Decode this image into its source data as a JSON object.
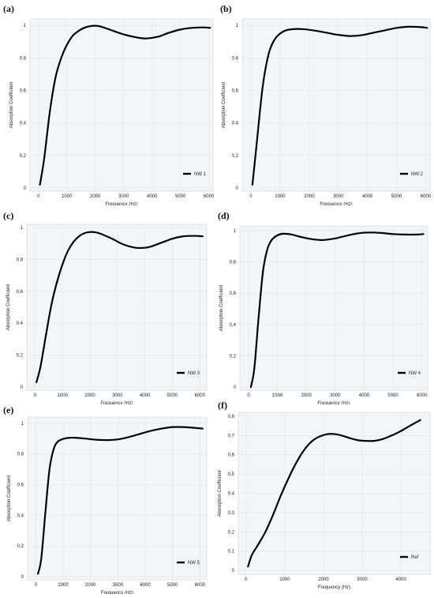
{
  "panels": [
    {
      "label": "(a)",
      "chart_data": {
        "type": "line",
        "xlabel": "Frequency (Hz)",
        "ylabel": "Absorption Coefficient",
        "xlim": [
          -300,
          6150
        ],
        "ylim": [
          -0.02,
          1.04
        ],
        "xticks": [
          0,
          1000,
          2000,
          3000,
          4000,
          5000,
          6000
        ],
        "yticks": [
          0,
          0.2,
          0.4,
          0.6,
          0.8,
          1
        ],
        "ytick_labels": [
          "0",
          "0.2",
          "0.4",
          "0.6",
          "0.8",
          "1"
        ],
        "grid": true,
        "legend": "bottom-right",
        "series": [
          {
            "name": "NW 1",
            "x": [
              50,
              200,
              400,
              600,
              800,
              1000,
              1200,
              1400,
              1600,
              1800,
              2000,
              2200,
              2500,
              3000,
              3500,
              3800,
              4200,
              4600,
              5000,
              5400,
              5800,
              6050
            ],
            "y": [
              0.02,
              0.18,
              0.47,
              0.68,
              0.8,
              0.88,
              0.935,
              0.965,
              0.985,
              0.995,
              0.998,
              0.993,
              0.975,
              0.945,
              0.925,
              0.92,
              0.93,
              0.955,
              0.975,
              0.985,
              0.988,
              0.985
            ]
          }
        ]
      }
    },
    {
      "label": "(b)",
      "chart_data": {
        "type": "line",
        "xlabel": "Frequency (Hz)",
        "ylabel": "Absorption Coefficient",
        "xlim": [
          -300,
          6150
        ],
        "ylim": [
          -0.02,
          1.04
        ],
        "xticks": [
          0,
          1000,
          2000,
          3000,
          4000,
          5000,
          6000
        ],
        "yticks": [
          0,
          0.2,
          0.4,
          0.6,
          0.8,
          1
        ],
        "ytick_labels": [
          "0",
          "0.2",
          "0.4",
          "0.6",
          "0.8",
          "1"
        ],
        "grid": true,
        "legend": "bottom-right",
        "series": [
          {
            "name": "NW 2",
            "x": [
              50,
              200,
              400,
              600,
              800,
              1000,
              1200,
              1500,
              1800,
              2200,
              2600,
              3000,
              3400,
              3800,
              4200,
              4600,
              5000,
              5400,
              5800,
              6050
            ],
            "y": [
              0.02,
              0.28,
              0.62,
              0.82,
              0.91,
              0.95,
              0.97,
              0.978,
              0.977,
              0.968,
              0.955,
              0.942,
              0.935,
              0.94,
              0.955,
              0.97,
              0.985,
              0.992,
              0.99,
              0.985
            ]
          }
        ]
      }
    },
    {
      "label": "(c)",
      "chart_data": {
        "type": "line",
        "xlabel": "Frequency (Hz)",
        "ylabel": "Absorption Coefficient",
        "xlim": [
          -300,
          6250
        ],
        "ylim": [
          -0.02,
          1.02
        ],
        "xticks": [
          0,
          1000,
          2000,
          3000,
          4000,
          5000,
          6000
        ],
        "yticks": [
          0,
          0.2,
          0.4,
          0.6,
          0.8,
          1
        ],
        "ytick_labels": [
          "0",
          "0.2",
          "0.4",
          "0.6",
          "0.8",
          "1"
        ],
        "grid": true,
        "legend": "bottom-right",
        "series": [
          {
            "name": "NW 3",
            "x": [
              50,
              200,
              400,
              600,
              800,
              1000,
              1200,
              1400,
              1600,
              1800,
              2000,
              2200,
              2400,
              2800,
              3200,
              3600,
              3900,
              4200,
              4600,
              5000,
              5400,
              5800,
              6100
            ],
            "y": [
              0.03,
              0.13,
              0.33,
              0.52,
              0.66,
              0.77,
              0.855,
              0.91,
              0.945,
              0.965,
              0.972,
              0.97,
              0.96,
              0.93,
              0.895,
              0.875,
              0.872,
              0.88,
              0.905,
              0.93,
              0.945,
              0.948,
              0.945
            ]
          }
        ]
      }
    },
    {
      "label": "(d)",
      "chart_data": {
        "type": "line",
        "xlabel": "Frequency (Hz)",
        "ylabel": "Absorption Coefficient",
        "xlim": [
          -300,
          6200
        ],
        "ylim": [
          -0.02,
          1.03
        ],
        "xticks": [
          0,
          1000,
          2000,
          3000,
          4000,
          5000,
          6000
        ],
        "yticks": [
          0,
          0.2,
          0.4,
          0.6,
          0.8,
          1
        ],
        "ytick_labels": [
          "0",
          "0.2",
          "0.4",
          "0.6",
          "0.8",
          "1"
        ],
        "grid": true,
        "legend": "bottom-right",
        "series": [
          {
            "name": "NW 4",
            "x": [
              80,
              200,
              350,
              500,
              650,
              800,
              1000,
              1200,
              1500,
              1800,
              2200,
              2600,
              3000,
              3400,
              3800,
              4200,
              4600,
              5000,
              5400,
              5800,
              6050
            ],
            "y": [
              0.0,
              0.12,
              0.45,
              0.74,
              0.88,
              0.94,
              0.97,
              0.98,
              0.975,
              0.96,
              0.945,
              0.94,
              0.95,
              0.968,
              0.983,
              0.988,
              0.985,
              0.978,
              0.975,
              0.975,
              0.978
            ]
          }
        ]
      }
    },
    {
      "label": "(e)",
      "chart_data": {
        "type": "line",
        "xlabel": "Frequency (Hz)",
        "ylabel": "Absorption Coefficient",
        "xlim": [
          -300,
          6250
        ],
        "ylim": [
          -0.02,
          1.04
        ],
        "xticks": [
          0,
          1000,
          2000,
          3000,
          4000,
          5000,
          6000
        ],
        "yticks": [
          0,
          0.2,
          0.4,
          0.6,
          0.8,
          1
        ],
        "ytick_labels": [
          "0",
          "0.2",
          "0.4",
          "0.6",
          "0.8",
          "1"
        ],
        "grid": true,
        "legend": "bottom-right",
        "series": [
          {
            "name": "NW 5",
            "x": [
              80,
              200,
              350,
              500,
              650,
              800,
              1000,
              1200,
              1500,
              1800,
              2200,
              2600,
              3000,
              3400,
              3800,
              4200,
              4600,
              5000,
              5400,
              5800,
              6100
            ],
            "y": [
              0.02,
              0.12,
              0.42,
              0.7,
              0.83,
              0.88,
              0.898,
              0.905,
              0.905,
              0.9,
              0.893,
              0.89,
              0.895,
              0.91,
              0.93,
              0.95,
              0.965,
              0.975,
              0.975,
              0.97,
              0.965
            ]
          }
        ]
      }
    },
    {
      "label": "(f)",
      "chart_data": {
        "type": "line",
        "xlabel": "Frequency (Hz)",
        "ylabel": "Absorption Coefficient",
        "xlim": [
          -200,
          4750
        ],
        "ylim": [
          -0.02,
          0.82
        ],
        "xticks": [
          0,
          1000,
          2000,
          3000,
          4000
        ],
        "yticks": [
          0,
          0.1,
          0.2,
          0.3,
          0.4,
          0.5,
          0.6,
          0.7,
          0.8
        ],
        "ytick_labels": [
          "0",
          "0.1",
          "0.2",
          "0.3",
          "0.4",
          "0.5",
          "0.6",
          "0.7",
          "0.8"
        ],
        "grid": true,
        "legend": "bottom-right",
        "series": [
          {
            "name": "Ref",
            "x": [
              50,
              150,
              300,
              500,
              700,
              900,
              1100,
              1300,
              1500,
              1700,
              1900,
              2100,
              2300,
              2500,
              2700,
              2900,
              3100,
              3300,
              3500,
              3700,
              3900,
              4100,
              4300,
              4500
            ],
            "y": [
              0.02,
              0.08,
              0.13,
              0.2,
              0.29,
              0.39,
              0.48,
              0.56,
              0.625,
              0.67,
              0.695,
              0.707,
              0.707,
              0.698,
              0.685,
              0.675,
              0.672,
              0.672,
              0.68,
              0.695,
              0.713,
              0.735,
              0.758,
              0.78
            ]
          }
        ]
      }
    }
  ]
}
